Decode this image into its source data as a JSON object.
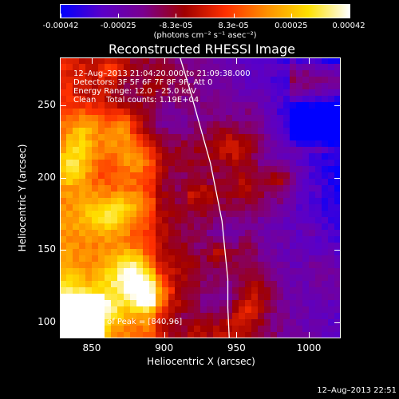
{
  "colorbar": {
    "tick_labels": [
      "-0.00042",
      "-0.00025",
      "-8.3e-05",
      "8.3e-05",
      "0.00025",
      "0.00042"
    ],
    "units_label": "(photons cm⁻² s⁻¹ asec⁻²)"
  },
  "annotations": {
    "time_range": "12–Aug–2013 21:04:20.000 to 21:09:38.000",
    "detectors": "Detectors: 3F 5F 6F 7F 8F 9F, Att 0",
    "energy": "Energy Range: 12.0 – 25.0 keV",
    "method_and_counts": "Clean    Total counts: 1.19E+04",
    "peak": "Position of Peak = [840,96]"
  },
  "footer_timestamp": "12–Aug–2013 22:51",
  "chart_data": {
    "type": "heatmap",
    "title": "Reconstructed RHESSI Image",
    "xlabel": "Heliocentric X (arcsec)",
    "ylabel": "Heliocentric Y (arcsec)",
    "xlim": [
      828,
      1022
    ],
    "ylim": [
      89,
      283
    ],
    "x_ticks": [
      850,
      900,
      950,
      1000
    ],
    "y_ticks": [
      100,
      150,
      200,
      250
    ],
    "colorbar_range": [
      -0.00042,
      0.00042
    ],
    "colormap": [
      "#0000ff",
      "#5a00c8",
      "#7a0090",
      "#a00000",
      "#ff3000",
      "#ff9000",
      "#ffe000",
      "#ffffff"
    ],
    "peak_position": [
      840,
      96
    ],
    "limb_curve": [
      [
        911,
        283
      ],
      [
        918,
        260
      ],
      [
        925,
        235
      ],
      [
        932,
        210
      ],
      [
        936,
        190
      ],
      [
        940,
        170
      ],
      [
        942,
        150
      ],
      [
        944,
        130
      ],
      [
        944,
        110
      ],
      [
        945,
        89
      ]
    ],
    "grid": false
  }
}
